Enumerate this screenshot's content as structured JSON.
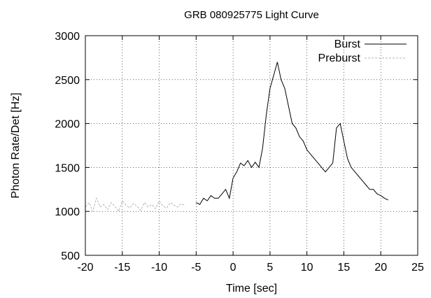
{
  "chart_data": {
    "type": "line",
    "title": "GRB 080925775 Light Curve",
    "xlabel": "Time [sec]",
    "ylabel": "Photon Rate/Det [Hz]",
    "xlim": [
      -20,
      25
    ],
    "ylim": [
      500,
      3000
    ],
    "xticks": [
      -20,
      -15,
      -10,
      -5,
      0,
      5,
      10,
      15,
      20,
      25
    ],
    "yticks": [
      500,
      1000,
      1500,
      2000,
      2500,
      3000
    ],
    "grid": true,
    "legend_position": "top-right",
    "series": [
      {
        "name": "Burst",
        "color": "#000000",
        "dash": "solid",
        "x": [
          -5,
          -4.5,
          -4,
          -3.5,
          -3,
          -2.5,
          -2,
          -1.5,
          -1,
          -0.5,
          0,
          0.5,
          1,
          1.5,
          2,
          2.5,
          3,
          3.5,
          4,
          4.5,
          5,
          5.5,
          6,
          6.5,
          7,
          7.5,
          8,
          8.5,
          9,
          9.5,
          10,
          10.5,
          11,
          11.5,
          12,
          12.5,
          13,
          13.5,
          14,
          14.5,
          15,
          15.5,
          16,
          16.5,
          17,
          17.5,
          18,
          18.5,
          19,
          19.5,
          20,
          20.5,
          21
        ],
        "y": [
          1100,
          1080,
          1150,
          1120,
          1180,
          1150,
          1150,
          1200,
          1250,
          1150,
          1380,
          1450,
          1550,
          1520,
          1580,
          1500,
          1560,
          1500,
          1720,
          2100,
          2400,
          2550,
          2700,
          2500,
          2400,
          2200,
          2000,
          1950,
          1850,
          1800,
          1700,
          1650,
          1600,
          1550,
          1500,
          1450,
          1500,
          1550,
          1950,
          2000,
          1800,
          1600,
          1500,
          1450,
          1400,
          1350,
          1300,
          1250,
          1250,
          1200,
          1180,
          1150,
          1130
        ]
      },
      {
        "name": "Preburst",
        "color": "#b4b4b4",
        "dash": "dashed",
        "x": [
          -20,
          -19.5,
          -19,
          -18.5,
          -18,
          -17.5,
          -17,
          -16.5,
          -16,
          -15.5,
          -15,
          -14.5,
          -14,
          -13.5,
          -13,
          -12.5,
          -12,
          -11.5,
          -11,
          -10.5,
          -10,
          -9.5,
          -9,
          -8.5,
          -8,
          -7.5,
          -7,
          -6.5
        ],
        "y": [
          1050,
          1100,
          1000,
          1150,
          1050,
          1080,
          1020,
          1100,
          1060,
          1000,
          1120,
          1070,
          1040,
          1090,
          1060,
          1010,
          1100,
          1050,
          1080,
          1030,
          1120,
          1060,
          1040,
          1100,
          1070,
          1050,
          1090,
          1060
        ]
      }
    ]
  }
}
